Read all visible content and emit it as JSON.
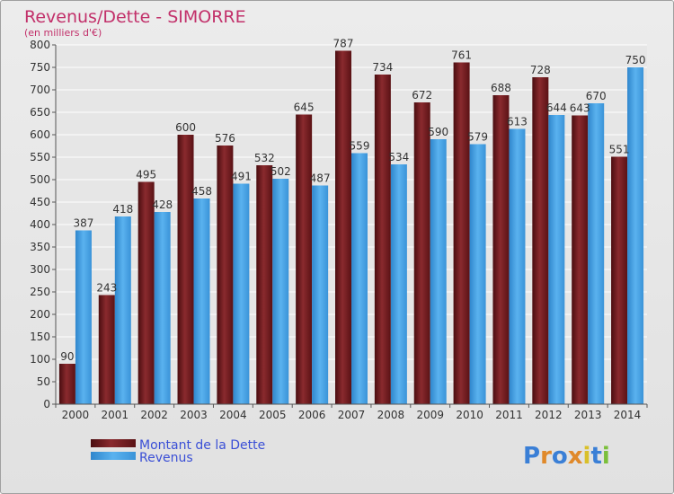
{
  "chart_data": {
    "type": "bar",
    "title": "Revenus/Dette - SIMORRE",
    "subtitle": "(en milliers d'€)",
    "xlabel": "",
    "ylabel": "",
    "ylim": [
      0,
      800
    ],
    "yticks": [
      0,
      50,
      100,
      150,
      200,
      250,
      300,
      350,
      400,
      450,
      500,
      550,
      600,
      650,
      700,
      750,
      800
    ],
    "grid": true,
    "legend_position": "bottom-left",
    "categories": [
      "2000",
      "2001",
      "2002",
      "2003",
      "2004",
      "2005",
      "2006",
      "2007",
      "2008",
      "2009",
      "2010",
      "2011",
      "2012",
      "2013",
      "2014"
    ],
    "series": [
      {
        "name": "Montant de la Dette",
        "color": "#7a1f22",
        "values": [
          90,
          243,
          495,
          600,
          576,
          532,
          645,
          787,
          734,
          672,
          761,
          688,
          728,
          643,
          551
        ]
      },
      {
        "name": "Revenus",
        "color": "#4aa3e4",
        "values": [
          387,
          418,
          428,
          458,
          491,
          502,
          487,
          559,
          534,
          590,
          579,
          613,
          644,
          670,
          750
        ]
      }
    ]
  },
  "logo": {
    "text": "Proxiti"
  },
  "colors": {
    "title": "#c2306a",
    "legend_text": "#3a4fd6",
    "axis_text": "#333333"
  }
}
